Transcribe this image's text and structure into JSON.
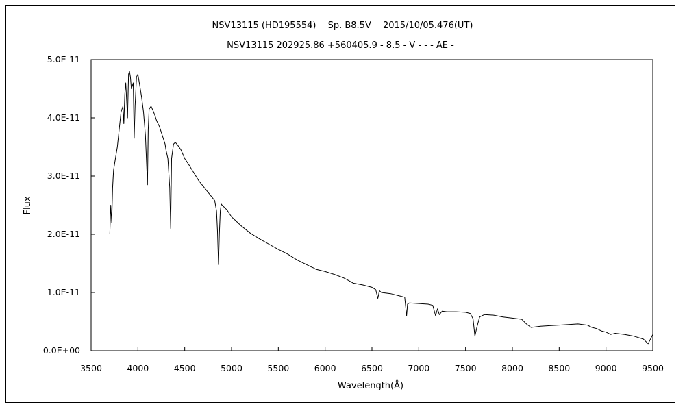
{
  "chart_data": {
    "type": "line",
    "title": "NSV13115 (HD195554)　 Sp. B8.5V　 2015/10/05.476(UT)",
    "subtitle": "NSV13115 202925.86 +560405.9 - 8.5 - V - - - AE -",
    "xlabel": "Wavelength(Å)",
    "ylabel": "Flux",
    "xlim": [
      3500,
      9500
    ],
    "ylim": [
      0,
      5e-11
    ],
    "x_ticks": [
      "3500",
      "4000",
      "4500",
      "5000",
      "5500",
      "6000",
      "6500",
      "7000",
      "7500",
      "8000",
      "8500",
      "9000",
      "9500"
    ],
    "y_ticks": [
      "0.0E+00",
      "1.0E-11",
      "2.0E-11",
      "3.0E-11",
      "4.0E-11",
      "5.0E-11"
    ],
    "grid": false,
    "series": [
      {
        "color": "#000000",
        "x": [
          3700,
          3710,
          3720,
          3730,
          3740,
          3760,
          3780,
          3800,
          3820,
          3840,
          3850,
          3860,
          3870,
          3880,
          3889,
          3900,
          3910,
          3920,
          3930,
          3950,
          3960,
          3970,
          3985,
          4000,
          4020,
          4040,
          4060,
          4080,
          4102,
          4110,
          4120,
          4140,
          4160,
          4180,
          4200,
          4230,
          4260,
          4290,
          4300,
          4320,
          4340,
          4350,
          4360,
          4380,
          4400,
          4430,
          4460,
          4500,
          4550,
          4600,
          4650,
          4700,
          4750,
          4800,
          4820,
          4840,
          4850,
          4861,
          4870,
          4880,
          4890,
          4900,
          4950,
          5000,
          5100,
          5200,
          5300,
          5400,
          5500,
          5600,
          5700,
          5800,
          5850,
          5880,
          5900,
          6000,
          6100,
          6200,
          6280,
          6300,
          6400,
          6500,
          6540,
          6563,
          6580,
          6600,
          6700,
          6800,
          6850,
          6870,
          6880,
          6900,
          7000,
          7100,
          7150,
          7180,
          7200,
          7220,
          7250,
          7300,
          7400,
          7500,
          7550,
          7580,
          7600,
          7620,
          7650,
          7700,
          7800,
          7900,
          8000,
          8100,
          8150,
          8200,
          8300,
          8400,
          8500,
          8600,
          8700,
          8800,
          8850,
          8900,
          8950,
          9000,
          9050,
          9100,
          9200,
          9300,
          9400,
          9450,
          9500
        ],
        "y": [
          2e-11,
          2.5e-11,
          2.2e-11,
          2.8e-11,
          3.1e-11,
          3.3e-11,
          3.5e-11,
          3.8e-11,
          4.1e-11,
          4.2e-11,
          3.9e-11,
          4.4e-11,
          4.6e-11,
          4.3e-11,
          4e-11,
          4.75e-11,
          4.8e-11,
          4.7e-11,
          4.5e-11,
          4.6e-11,
          3.65e-11,
          4.2e-11,
          4.7e-11,
          4.75e-11,
          4.55e-11,
          4.35e-11,
          4.1e-11,
          3.7e-11,
          2.85e-11,
          3.8e-11,
          4.15e-11,
          4.2e-11,
          4.13e-11,
          4.05e-11,
          3.95e-11,
          3.85e-11,
          3.7e-11,
          3.55e-11,
          3.45e-11,
          3.3e-11,
          2.8e-11,
          2.1e-11,
          3.3e-11,
          3.55e-11,
          3.58e-11,
          3.52e-11,
          3.45e-11,
          3.3e-11,
          3.18e-11,
          3.05e-11,
          2.92e-11,
          2.82e-11,
          2.72e-11,
          2.62e-11,
          2.58e-11,
          2.4e-11,
          2.05e-11,
          1.48e-11,
          2e-11,
          2.4e-11,
          2.52e-11,
          2.5e-11,
          2.42e-11,
          2.3e-11,
          2.15e-11,
          2.02e-11,
          1.92e-11,
          1.83e-11,
          1.74e-11,
          1.66e-11,
          1.56e-11,
          1.48e-11,
          1.44e-11,
          1.42e-11,
          1.4e-11,
          1.36e-11,
          1.31e-11,
          1.25e-11,
          1.18e-11,
          1.16e-11,
          1.13e-11,
          1.09e-11,
          1.05e-11,
          9e-12,
          1.03e-11,
          1e-11,
          9.8e-12,
          9.4e-12,
          9.2e-12,
          6e-12,
          8e-12,
          8.2e-12,
          8.1e-12,
          8e-12,
          7.8e-12,
          6e-12,
          7.2e-12,
          6.2e-12,
          6.8e-12,
          6.7e-12,
          6.7e-12,
          6.6e-12,
          6.4e-12,
          5.5e-12,
          2.5e-12,
          4e-12,
          5.8e-12,
          6.2e-12,
          6.1e-12,
          5.8e-12,
          5.6e-12,
          5.4e-12,
          4.6e-12,
          4e-12,
          4.2e-12,
          4.3e-12,
          4.4e-12,
          4.5e-12,
          4.6e-12,
          4.4e-12,
          4e-12,
          3.8e-12,
          3.4e-12,
          3.2e-12,
          2.8e-12,
          3e-12,
          2.8e-12,
          2.5e-12,
          2e-12,
          1.2e-12,
          2.8e-12
        ]
      }
    ]
  }
}
